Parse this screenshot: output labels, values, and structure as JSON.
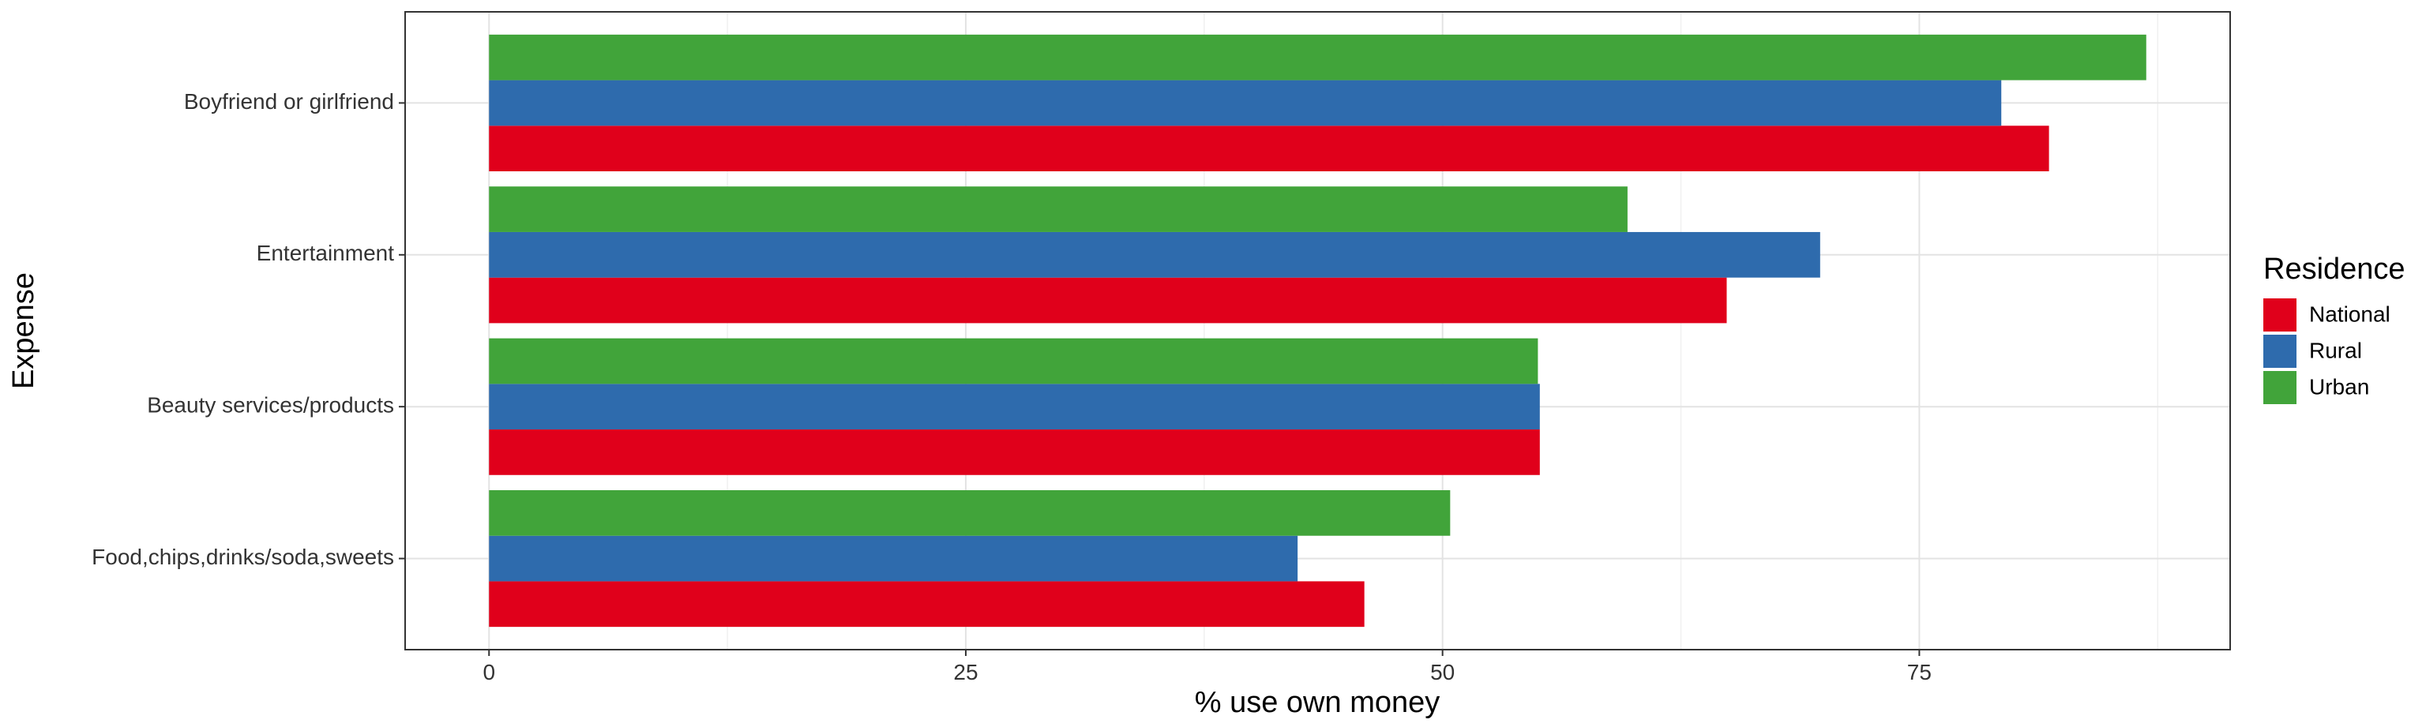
{
  "chart_data": {
    "type": "bar",
    "orientation": "horizontal",
    "categories": [
      "Boyfriend or girlfriend",
      "Entertainment",
      "Beauty services/products",
      "Food,chips,drinks/soda,sweets"
    ],
    "series": [
      {
        "name": "National",
        "color": "#E0001B",
        "values": [
          81.8,
          64.9,
          55.1,
          45.9
        ]
      },
      {
        "name": "Rural",
        "color": "#2E6BAD",
        "values": [
          79.3,
          69.8,
          55.1,
          42.4
        ]
      },
      {
        "name": "Urban",
        "color": "#41A43A",
        "values": [
          86.9,
          59.7,
          55.0,
          50.4
        ]
      }
    ],
    "xlabel": "% use own money",
    "ylabel": "Expense",
    "xlim": [
      -4.4,
      91.3
    ],
    "xticks": [
      0,
      25,
      50,
      75
    ],
    "grid": true,
    "legend": {
      "title": "Residence",
      "position": "right"
    }
  }
}
